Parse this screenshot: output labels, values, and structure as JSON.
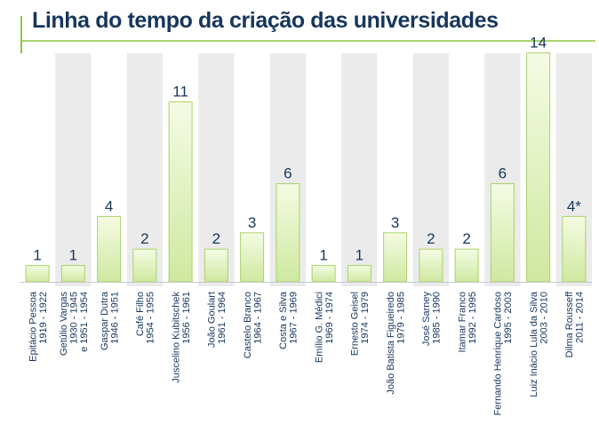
{
  "chart_data": {
    "type": "bar",
    "title": "Linha do tempo da criação das universidades",
    "xlabel": "",
    "ylabel": "",
    "ylim": [
      0,
      15
    ],
    "grid": false,
    "legend": "none",
    "colors": {
      "bar_fill_top": "#f5fbe4",
      "bar_fill_bottom": "#cfe8a0",
      "bar_stroke": "#a9d26a",
      "band": "#ebebeb",
      "accent": "#8dc63f",
      "text": "#17365d"
    },
    "categories": [
      [
        "Epitácio Pessoa",
        "1919 - 1922"
      ],
      [
        "Getúlio Vargas",
        "1930 - 1945",
        "e 1951 - 1954"
      ],
      [
        "Gaspar Dutra",
        "1946 - 1951"
      ],
      [
        "Café Filho",
        "1954 - 1955"
      ],
      [
        "Juscelino Kubitschek",
        "1956 - 1961"
      ],
      [
        "João Goulart",
        "1961 - 1964"
      ],
      [
        "Castelo Branco",
        "1964 - 1967"
      ],
      [
        "Costa e Silva",
        "1967 - 1969"
      ],
      [
        "Emílio G. Médici",
        "1969 - 1974"
      ],
      [
        "Ernesto Geisel",
        "1974 - 1979"
      ],
      [
        "João Batista Figueiredo",
        "1979 - 1985"
      ],
      [
        "José Sarney",
        "1985 - 1990"
      ],
      [
        "Itamar Franco",
        "1992 - 1995"
      ],
      [
        "Fernando Henrique Cardoso",
        "1995 - 2003"
      ],
      [
        "Luiz Inácio Lula da Silva",
        "2003 - 2010"
      ],
      [
        "Dilma Rousseff",
        "2011 - 2014"
      ]
    ],
    "values": [
      1,
      1,
      4,
      2,
      11,
      2,
      3,
      6,
      1,
      1,
      3,
      2,
      2,
      6,
      14,
      4
    ],
    "value_labels": [
      "1",
      "1",
      "4",
      "2",
      "11",
      "2",
      "3",
      "6",
      "1",
      "1",
      "3",
      "2",
      "2",
      "6",
      "14",
      "4*"
    ]
  }
}
